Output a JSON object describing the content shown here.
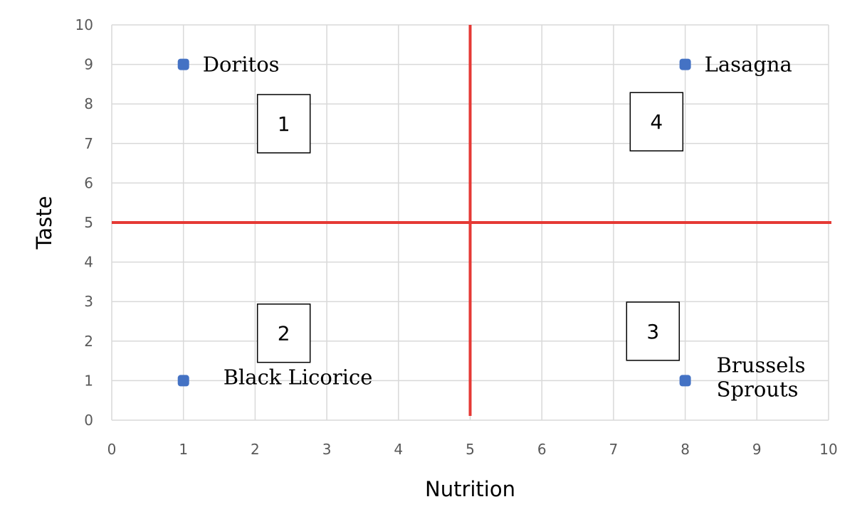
{
  "chart_data": {
    "type": "scatter",
    "title": "",
    "xlabel": "Nutrition",
    "ylabel": "Taste",
    "xlim": [
      0,
      10
    ],
    "ylim": [
      0,
      10
    ],
    "xticks": [
      "0",
      "1",
      "2",
      "3",
      "4",
      "5",
      "6",
      "7",
      "8",
      "9",
      "10"
    ],
    "yticks": [
      "0",
      "1",
      "2",
      "3",
      "4",
      "5",
      "6",
      "7",
      "8",
      "9",
      "10"
    ],
    "grid": true,
    "points": [
      {
        "x": 1,
        "y": 9,
        "label": [
          "Doritos"
        ]
      },
      {
        "x": 8,
        "y": 9,
        "label": [
          "Lasagna"
        ]
      },
      {
        "x": 1,
        "y": 1,
        "label": [
          "Black Licorice"
        ]
      },
      {
        "x": 8,
        "y": 1,
        "label": [
          "Brussels",
          "Sprouts"
        ]
      }
    ],
    "reference_lines": [
      {
        "axis": "x",
        "value": 5
      },
      {
        "axis": "y",
        "value": 5
      }
    ],
    "quadrants": [
      {
        "label": "1",
        "x": 2.4,
        "y": 7.5
      },
      {
        "label": "2",
        "x": 2.4,
        "y": 2.2
      },
      {
        "label": "3",
        "x": 7.55,
        "y": 2.25
      },
      {
        "label": "4",
        "x": 7.6,
        "y": 7.55
      }
    ],
    "colors": {
      "marker": "#4472C4",
      "reference": "#E53935",
      "grid": "#D9D9D9"
    }
  }
}
